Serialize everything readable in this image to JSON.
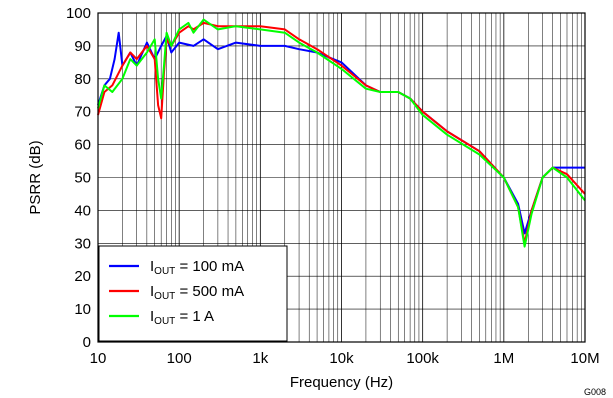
{
  "chart_data": {
    "type": "line",
    "xscale": "log",
    "xlim": [
      10,
      10000000
    ],
    "ylim": [
      0,
      100
    ],
    "xlabel": "Frequency (Hz)",
    "ylabel": "PSRR (dB)",
    "x_ticks": [
      "10",
      "100",
      "1k",
      "10k",
      "100k",
      "1M",
      "10M"
    ],
    "y_ticks": [
      "0",
      "10",
      "20",
      "30",
      "40",
      "50",
      "60",
      "70",
      "80",
      "90",
      "100"
    ],
    "grid": true,
    "legend_position": "bottom-left",
    "figure_code": "G008",
    "series": [
      {
        "name": "I_OUT = 100 mA",
        "legend": {
          "prefix": "I",
          "sub": "OUT",
          "suffix": " = 100 mA"
        },
        "color": "#0000ff",
        "x": [
          10,
          12,
          14,
          16,
          18,
          20,
          25,
          30,
          40,
          50,
          60,
          70,
          80,
          100,
          150,
          200,
          300,
          500,
          1000,
          2000,
          3000,
          5000,
          10000,
          20000,
          30000,
          50000,
          70000,
          100000,
          200000,
          500000,
          1000000,
          1500000,
          1800000,
          2200000,
          3000000,
          4000000,
          6000000,
          10000000
        ],
        "y": [
          72,
          78,
          80,
          86,
          94,
          84,
          88,
          84,
          91,
          86,
          90,
          93,
          88,
          91,
          90,
          92,
          89,
          91,
          90,
          90,
          89,
          88,
          85,
          78,
          76,
          76,
          74,
          70,
          64,
          58,
          50,
          42,
          33,
          40,
          50,
          53,
          53,
          53
        ]
      },
      {
        "name": "I_OUT = 500 mA",
        "legend": {
          "prefix": "I",
          "sub": "OUT",
          "suffix": " = 500 mA"
        },
        "color": "#ff0000",
        "x": [
          10,
          12,
          15,
          20,
          25,
          30,
          40,
          50,
          55,
          60,
          65,
          70,
          80,
          100,
          130,
          150,
          200,
          300,
          500,
          1000,
          2000,
          3000,
          5000,
          10000,
          20000,
          30000,
          50000,
          70000,
          100000,
          200000,
          500000,
          1000000,
          1500000,
          1800000,
          2200000,
          3000000,
          4000000,
          6000000,
          10000000
        ],
        "y": [
          69,
          76,
          78,
          84,
          88,
          86,
          90,
          86,
          72,
          68,
          82,
          92,
          90,
          94,
          96,
          95,
          97,
          96,
          96,
          96,
          95,
          92,
          89,
          84,
          78,
          76,
          76,
          74,
          70,
          64,
          58,
          50,
          41,
          30,
          40,
          50,
          53,
          51,
          45
        ]
      },
      {
        "name": "I_OUT = 1 A",
        "legend": {
          "prefix": "I",
          "sub": "OUT",
          "suffix": " = 1 A"
        },
        "color": "#00ff00",
        "x": [
          10,
          12,
          15,
          20,
          25,
          30,
          40,
          50,
          55,
          60,
          65,
          70,
          80,
          100,
          130,
          150,
          200,
          300,
          500,
          1000,
          2000,
          3000,
          5000,
          10000,
          20000,
          30000,
          50000,
          70000,
          100000,
          200000,
          500000,
          1000000,
          1500000,
          1800000,
          2200000,
          3000000,
          4000000,
          6000000,
          10000000
        ],
        "y": [
          71,
          78,
          76,
          80,
          86,
          84,
          88,
          92,
          80,
          74,
          84,
          94,
          90,
          95,
          97,
          94,
          98,
          95,
          96,
          95,
          94,
          91,
          88,
          83,
          77,
          76,
          76,
          74,
          69,
          63,
          57,
          50,
          41,
          29,
          39,
          50,
          53,
          50,
          43
        ]
      }
    ]
  }
}
